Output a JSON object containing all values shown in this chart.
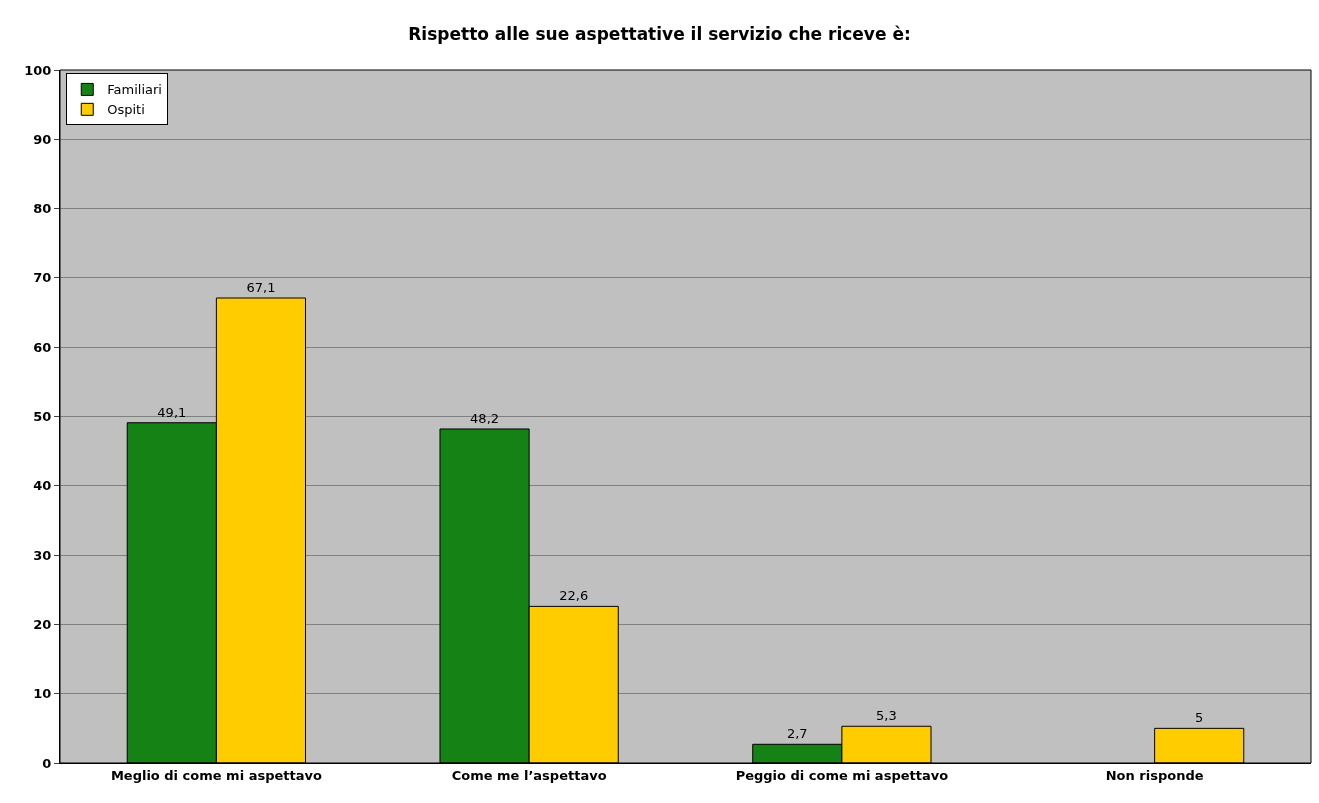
{
  "chart_data": {
    "type": "bar",
    "title": "Rispetto alle sue aspettative il servizio che riceve è:",
    "categories": [
      "Meglio di come mi aspettavo",
      "Come me l’aspettavo",
      "Peggio di come mi aspettavo",
      "Non risponde"
    ],
    "series": [
      {
        "name": "Familiari",
        "color": "#148214",
        "values": [
          49.1,
          48.2,
          2.7,
          null
        ],
        "value_labels": [
          "49,1",
          "48,2",
          "2,7",
          null
        ]
      },
      {
        "name": "Ospiti",
        "color": "#ffcc00",
        "values": [
          67.1,
          22.6,
          5.3,
          5
        ],
        "value_labels": [
          "67,1",
          "22,6",
          "5,3",
          "5"
        ]
      }
    ],
    "ylim": [
      0,
      100
    ],
    "yticks": [
      0,
      10,
      20,
      30,
      40,
      50,
      60,
      70,
      80,
      90,
      100
    ],
    "grid": "y",
    "legend": "top left"
  }
}
